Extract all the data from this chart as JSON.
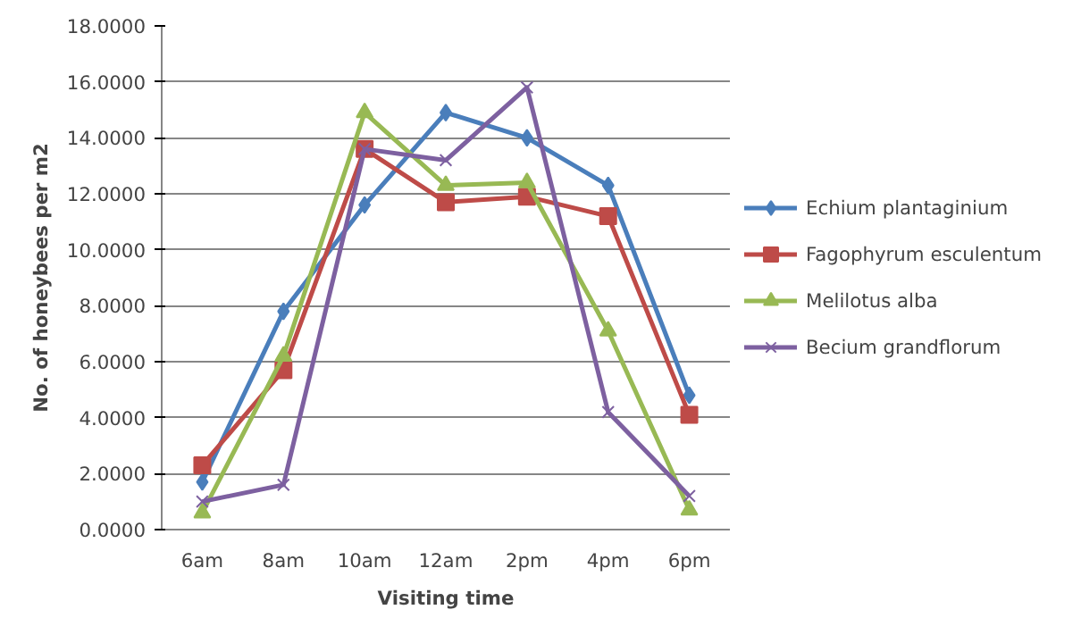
{
  "chart_data": {
    "type": "line",
    "xlabel": "Visiting time",
    "ylabel": "No. of honeybees per m2",
    "categories": [
      "6am",
      "8am",
      "10am",
      "12am",
      "2pm",
      "4pm",
      "6pm"
    ],
    "ylim": [
      0,
      18
    ],
    "yticks": [
      {
        "value": 0,
        "label": "0.0000"
      },
      {
        "value": 2,
        "label": "2.0000"
      },
      {
        "value": 4,
        "label": "4.0000"
      },
      {
        "value": 6,
        "label": "6.0000"
      },
      {
        "value": 8,
        "label": "8.0000"
      },
      {
        "value": 10,
        "label": "10.0000"
      },
      {
        "value": 12,
        "label": "12.0000"
      },
      {
        "value": 14,
        "label": "14.0000"
      },
      {
        "value": 16,
        "label": "16.0000"
      },
      {
        "value": 18,
        "label": "18.0000"
      }
    ],
    "grid": "y",
    "legend": "right",
    "line_style": "solid",
    "series": [
      {
        "name": "Echium plantaginium",
        "color": "#4a7ebb",
        "marker": "diamond",
        "values": [
          1.7,
          7.8,
          11.6,
          14.9,
          14.0,
          12.3,
          4.8
        ]
      },
      {
        "name": "Fagophyrum esculentum",
        "color": "#be4b48",
        "marker": "square",
        "values": [
          2.3,
          5.7,
          13.6,
          11.7,
          11.9,
          11.2,
          4.1
        ]
      },
      {
        "name": "Melilotus alba",
        "color": "#98b954",
        "marker": "triangle",
        "values": [
          0.6,
          6.2,
          14.9,
          12.3,
          12.4,
          7.1,
          0.7
        ]
      },
      {
        "name": "Becium grandflorum",
        "color": "#7d60a0",
        "marker": "cross",
        "values": [
          1.0,
          1.6,
          13.6,
          13.2,
          15.8,
          4.2,
          1.2
        ]
      }
    ]
  }
}
